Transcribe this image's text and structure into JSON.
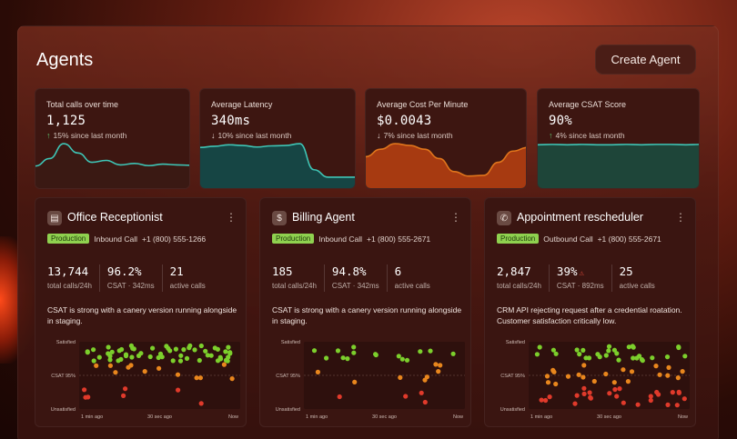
{
  "header": {
    "title": "Agents",
    "create_label": "Create Agent"
  },
  "metrics": [
    {
      "title": "Total calls over time",
      "value": "1,125",
      "direction": "up",
      "delta": "15% since last month",
      "color": "#3ec5b6",
      "fill": "#3a1a14",
      "series": [
        0.35,
        0.55,
        0.95,
        0.7,
        0.45,
        0.5,
        0.38,
        0.42,
        0.36,
        0.4,
        0.38,
        0.37
      ]
    },
    {
      "title": "Average Latency",
      "value": "340ms",
      "direction": "down",
      "delta": "10% since last month",
      "color": "#3ec5b6",
      "fill": "#124a4a",
      "series": [
        0.85,
        0.88,
        0.92,
        0.9,
        0.86,
        0.89,
        0.9,
        0.95,
        0.25,
        0.05,
        0.05,
        0.05
      ]
    },
    {
      "title": "Average Cost Per Minute",
      "value": "$0.0043",
      "direction": "down",
      "delta": "7% since last month",
      "color": "#e0751c",
      "fill": "#b23e12",
      "series": [
        0.6,
        0.8,
        0.95,
        0.9,
        0.8,
        0.55,
        0.2,
        0.08,
        0.1,
        0.45,
        0.75,
        0.85
      ]
    },
    {
      "title": "Average CSAT Score",
      "value": "90%",
      "direction": "up",
      "delta": "4% since last month",
      "color": "#3ec5b6",
      "fill": "#1b4a3e",
      "series": [
        0.92,
        0.93,
        0.92,
        0.93,
        0.92,
        0.92,
        0.93,
        0.92,
        0.93,
        0.93,
        0.92,
        0.93
      ]
    }
  ],
  "agents": [
    {
      "name": "Office Receptionist",
      "icon": "office-building-icon",
      "glyph": "▤",
      "status": "Production",
      "call_type": "Inbound Call",
      "phone": "+1 (800) 555-1266",
      "total_calls": "13,744",
      "total_calls_label": "total calls/24h",
      "csat": "96.2%",
      "csat_sub": "CSAT · 342ms",
      "warn": false,
      "active": "21",
      "active_label": "active calls",
      "desc": "CSAT is strong with a canery version running alongside in staging.",
      "chart_data": {
        "type": "scatter",
        "ylabels": [
          "Satisfied",
          "CSAT 95%",
          "Unsatisfied"
        ],
        "xlabels": [
          "1 min ago",
          "30 sec ago",
          "Now"
        ],
        "seed": 3,
        "green": 56,
        "orange": 12,
        "red": 7
      }
    },
    {
      "name": "Billing Agent",
      "icon": "dollar-icon",
      "glyph": "$",
      "status": "Production",
      "call_type": "Inbound Call",
      "phone": "+1 (800) 555-2671",
      "total_calls": "185",
      "total_calls_label": "total calls/24h",
      "csat": "94.8%",
      "csat_sub": "CSAT · 342ms",
      "warn": false,
      "active": "6",
      "active_label": "active calls",
      "desc": "CSAT is strong with a canery version running alongside in staging.",
      "chart_data": {
        "type": "scatter",
        "ylabels": [
          "Satisfied",
          "CSAT 95%",
          "Unsatisfied"
        ],
        "xlabels": [
          "1 min ago",
          "30 sec ago",
          "Now"
        ],
        "seed": 11,
        "green": 15,
        "orange": 8,
        "red": 4
      }
    },
    {
      "name": "Appointment rescheduler",
      "icon": "phone-icon",
      "glyph": "✆",
      "status": "Production",
      "call_type": "Outbound Call",
      "phone": "+1 (800) 555-2671",
      "total_calls": "2,847",
      "total_calls_label": "total calls/24h",
      "csat": "39%",
      "csat_sub": "CSAT · 892ms",
      "warn": true,
      "active": "25",
      "active_label": "active calls",
      "desc": "CRM API rejecting request after a credential roatation. Customer satisfaction critically low.",
      "chart_data": {
        "type": "scatter",
        "ylabels": [
          "Satisfied",
          "CSAT 95%",
          "Unsatisfied"
        ],
        "xlabels": [
          "1 min ago",
          "30 sec ago",
          "Now"
        ],
        "seed": 27,
        "green": 30,
        "orange": 22,
        "red": 26
      }
    }
  ]
}
